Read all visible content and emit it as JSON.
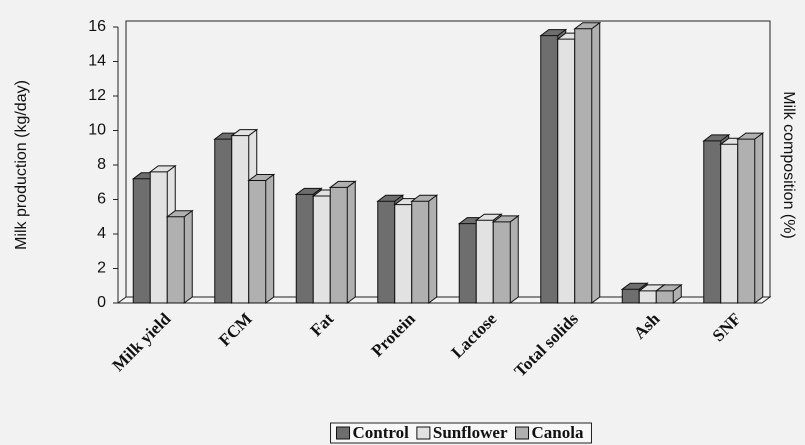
{
  "chart_data": {
    "type": "bar3d",
    "y_label": "Milk production (kg/day)",
    "y2_label": "Milk composition (%)",
    "categories": [
      "Milk yield",
      "FCM",
      "Fat",
      "Protein",
      "Lactose",
      "Total solids",
      "Ash",
      "SNF"
    ],
    "series": [
      {
        "name": "Control",
        "color": "#6e6e6e",
        "values": [
          7.2,
          9.5,
          6.3,
          5.9,
          4.6,
          15.5,
          0.8,
          9.4
        ]
      },
      {
        "name": "Sunflower",
        "color": "#e2e2e2",
        "values": [
          7.6,
          9.7,
          6.2,
          5.7,
          4.8,
          15.3,
          0.7,
          9.2
        ]
      },
      {
        "name": "Canola",
        "color": "#b0b0b0",
        "values": [
          5.0,
          7.1,
          6.7,
          5.9,
          4.7,
          15.9,
          0.7,
          9.5
        ]
      }
    ],
    "ylim": [
      0,
      16
    ],
    "yticks": [
      0,
      2,
      4,
      6,
      8,
      10,
      12,
      14,
      16
    ],
    "legend": "bottom"
  }
}
